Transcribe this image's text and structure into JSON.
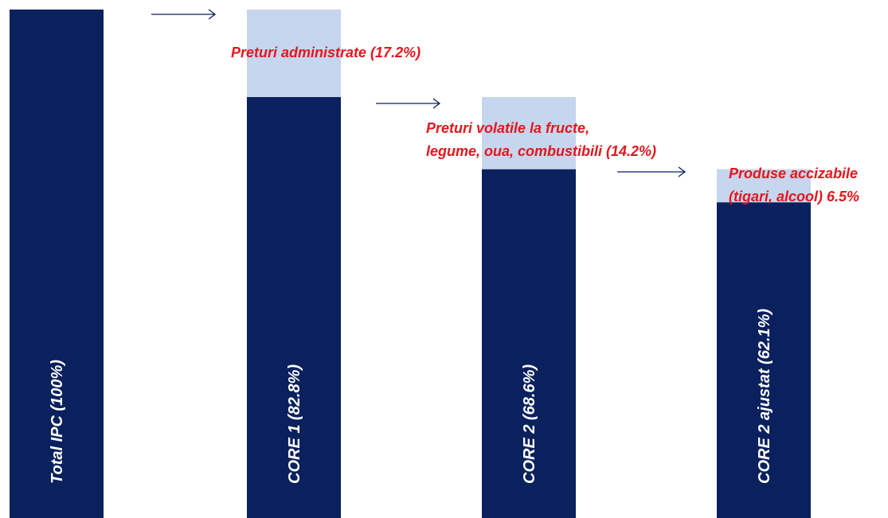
{
  "chart_data": {
    "type": "bar",
    "stacked": true,
    "categories": [
      "Total IPC (100%)",
      "CORE 1 (82.8%)",
      "CORE 2 (68.6%)",
      "CORE 2 ajustat (62.1%)"
    ],
    "series": [
      {
        "color": "#0b215e",
        "values": [
          100,
          82.8,
          68.6,
          62.1
        ]
      },
      {
        "color": "#c6d6ee",
        "values": [
          0,
          17.2,
          14.2,
          6.5
        ]
      }
    ],
    "ylim": [
      0,
      100
    ],
    "annotations": [
      [
        "Preturi administrate   (17.2%)"
      ],
      [
        "Preturi volatile la fructe,",
        "legume, oua, combustibili (14.2%)"
      ],
      [
        "Produse accizabile",
        "(tigari, alcool) 6.5%"
      ]
    ],
    "annotation_color": "#e5161c"
  }
}
